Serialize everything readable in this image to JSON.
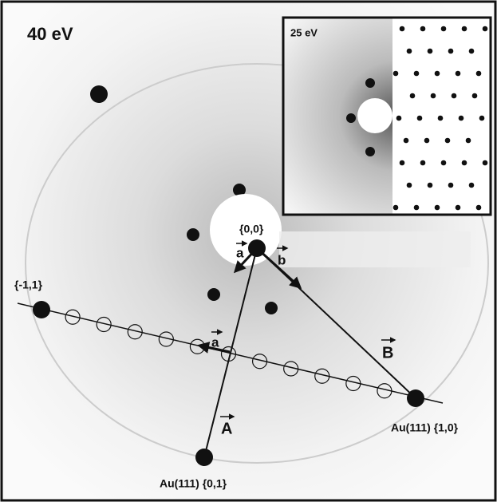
{
  "energy_label": "40 eV",
  "inset": {
    "energy_label": "25 eV"
  },
  "spots": {
    "origin": "{0,0}",
    "minus_one_one": "{-1,1}",
    "one_zero": "Au(111) {1,0}",
    "zero_one": "Au(111) {0,1}"
  },
  "vectors": {
    "a": "a",
    "b": "b",
    "A": "A",
    "B": "B",
    "a_on_line": "a"
  }
}
